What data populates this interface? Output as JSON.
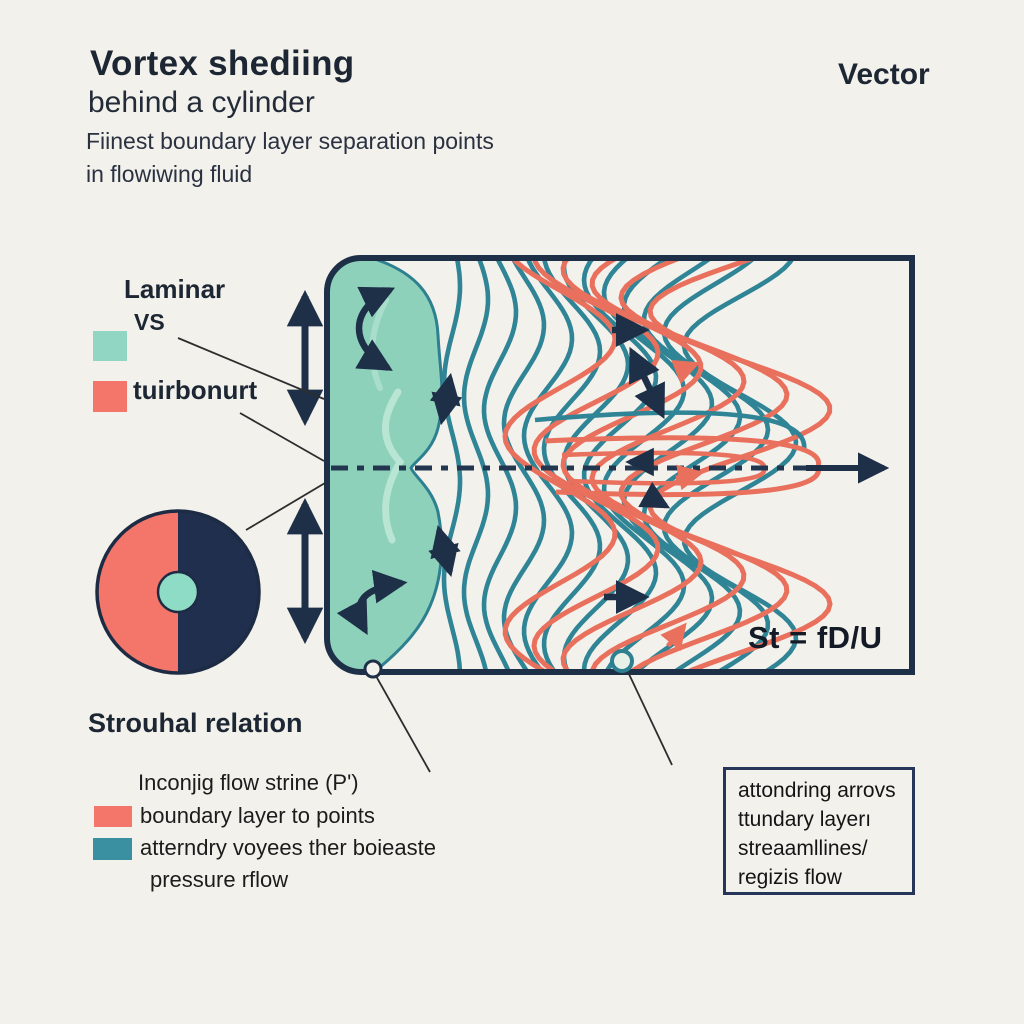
{
  "title": {
    "heading": "Vortex shediing",
    "subheading": "behind a cylinder",
    "caption_line1": "Fiinest boundary layer separation points",
    "caption_line2": "in flowiwing fluid"
  },
  "corner_label": "Vector",
  "top_legend": {
    "label_laminar": "Laminar",
    "label_vs": "VS",
    "label_turbulent": "tuirbonurt"
  },
  "section_heading": "Strouhal relation",
  "formula": "St = fD/U",
  "bottom_legend": {
    "line1": "Inconjig flow strine (P')",
    "line2": "boundary layer to points",
    "line3": "atterndry voyees ther boieaste",
    "line4": "pressure rflow"
  },
  "info_box": {
    "line1": "attondring arrovs",
    "line2": "ttundary layerı",
    "line3": "streaamllines/",
    "line4": "regizis flow"
  },
  "colors": {
    "background": "#f2f1ec",
    "box_border_navy": "#1e3048",
    "teal_streamline": "#2f8495",
    "separation_region_mint": "#8ed1bb",
    "coral_streamline": "#e9705d",
    "legend_salmon": "#f4766b",
    "legend_mint": "#90d6c3",
    "legend_teal": "#3a8fa0",
    "pie_left": "#f4766b",
    "pie_right": "#202f4e",
    "pie_center": "#8fdcc6"
  }
}
